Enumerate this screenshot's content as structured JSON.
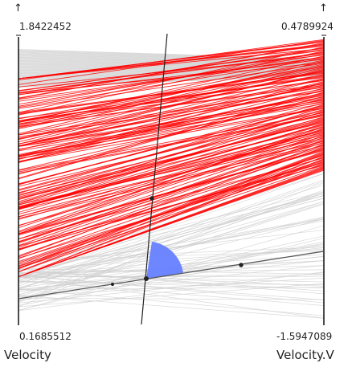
{
  "chart_data": {
    "type": "parallel-coordinates",
    "axes": [
      {
        "name": "Velocity",
        "max_label": "1.8422452",
        "min_label": "0.1685512",
        "max": 1.8422452,
        "min": 0.1685512,
        "direction_marker": "↑"
      },
      {
        "name": "Velocity.V",
        "max_label": "0.4789924",
        "min_label": "-1.5947089",
        "max": 0.4789924,
        "min": -1.5947089,
        "direction_marker": "↑"
      }
    ],
    "highlight_color": "#ff0000",
    "context_color": "#d0d0d0",
    "angle_marker_color": "#6680ff",
    "highlighted_band": {
      "left_axis_range": [
        0.45,
        1.6
      ],
      "right_axis_range": [
        -0.48,
        0.46
      ],
      "line_count": 160
    },
    "context_bands": [
      {
        "left_axis_range": [
          1.55,
          1.77
        ],
        "right_axis_range": [
          0.2,
          0.32
        ],
        "line_count": 60
      },
      {
        "left_axis_range": [
          0.25,
          0.55
        ],
        "right_axis_range": [
          -1.55,
          -0.5
        ],
        "line_count": 70
      }
    ],
    "axis_lines": "angular brush axes crossing the plot"
  }
}
